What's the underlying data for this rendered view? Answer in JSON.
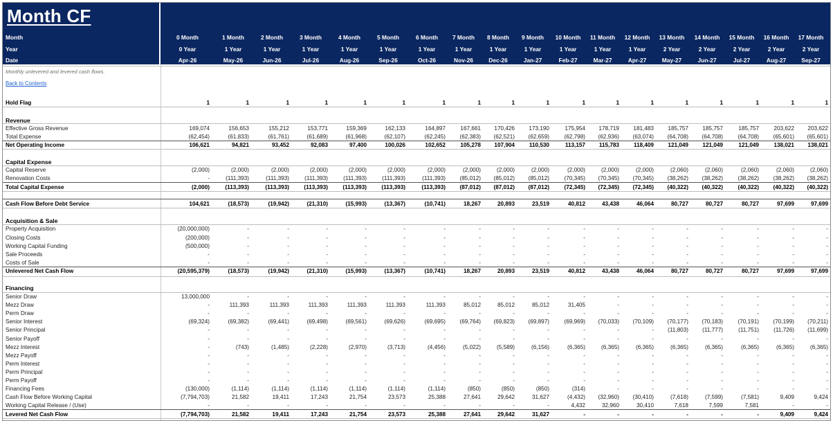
{
  "sheet": {
    "title": "Month CF",
    "note": "Monthly unlevered and levered cash flows.",
    "back_link": "Back to Contents"
  },
  "header": {
    "month_label": "Month",
    "year_label": "Year",
    "date_label": "Date",
    "months": [
      "0 Month",
      "1 Month",
      "2 Month",
      "3 Month",
      "4 Month",
      "5 Month",
      "6 Month",
      "7 Month",
      "8 Month",
      "9 Month",
      "10 Month",
      "11 Month",
      "12 Month",
      "13 Month",
      "14 Month",
      "15 Month",
      "16 Month",
      "17 Month"
    ],
    "years": [
      "0 Year",
      "1 Year",
      "1 Year",
      "1 Year",
      "1 Year",
      "1 Year",
      "1 Year",
      "1 Year",
      "1 Year",
      "1 Year",
      "1 Year",
      "1 Year",
      "1 Year",
      "2 Year",
      "2 Year",
      "2 Year",
      "2 Year",
      "2 Year"
    ],
    "dates": [
      "Apr-26",
      "May-26",
      "Jun-26",
      "Jul-26",
      "Aug-26",
      "Sep-26",
      "Oct-26",
      "Nov-26",
      "Dec-26",
      "Jan-27",
      "Feb-27",
      "Mar-27",
      "Apr-27",
      "May-27",
      "Jun-27",
      "Jul-27",
      "Aug-27",
      "Sep-27"
    ]
  },
  "rows": [
    {
      "label": "Hold Flag",
      "style": "hold",
      "values": [
        "1",
        "1",
        "1",
        "1",
        "1",
        "1",
        "1",
        "1",
        "1",
        "1",
        "1",
        "1",
        "1",
        "1",
        "1",
        "1",
        "1",
        "1"
      ]
    },
    {
      "label": "Revenue",
      "style": "section",
      "values": []
    },
    {
      "label": "Effective Gross Revenue",
      "style": "",
      "values": [
        "169,074",
        "156,653",
        "155,212",
        "153,771",
        "159,369",
        "162,133",
        "164,897",
        "167,661",
        "170,426",
        "173,190",
        "175,954",
        "178,719",
        "181,483",
        "185,757",
        "185,757",
        "185,757",
        "203,622",
        "203,622"
      ]
    },
    {
      "label": "Total Expense",
      "style": "",
      "values": [
        "(62,454)",
        "(61,833)",
        "(61,761)",
        "(61,689)",
        "(61,968)",
        "(62,107)",
        "(62,245)",
        "(62,383)",
        "(62,521)",
        "(62,659)",
        "(62,798)",
        "(62,936)",
        "(63,074)",
        "(64,708)",
        "(64,708)",
        "(64,708)",
        "(65,601)",
        "(65,601)"
      ]
    },
    {
      "label": "Net Operating Income",
      "style": "bold",
      "values": [
        "106,621",
        "94,821",
        "93,452",
        "92,083",
        "97,400",
        "100,026",
        "102,652",
        "105,278",
        "107,904",
        "110,530",
        "113,157",
        "115,783",
        "118,409",
        "121,049",
        "121,049",
        "121,049",
        "138,021",
        "138,021"
      ]
    },
    {
      "label": "Capital Expense",
      "style": "section",
      "values": []
    },
    {
      "label": "Capital Reserve",
      "style": "",
      "values": [
        "(2,000)",
        "(2,000)",
        "(2,000)",
        "(2,000)",
        "(2,000)",
        "(2,000)",
        "(2,000)",
        "(2,000)",
        "(2,000)",
        "(2,000)",
        "(2,000)",
        "(2,000)",
        "(2,000)",
        "(2,060)",
        "(2,060)",
        "(2,060)",
        "(2,060)",
        "(2,060)"
      ]
    },
    {
      "label": "Renovation Costs",
      "style": "",
      "values": [
        "-",
        "(111,393)",
        "(111,393)",
        "(111,393)",
        "(111,393)",
        "(111,393)",
        "(111,393)",
        "(85,012)",
        "(85,012)",
        "(85,012)",
        "(70,345)",
        "(70,345)",
        "(70,345)",
        "(38,262)",
        "(38,262)",
        "(38,262)",
        "(38,262)",
        "(38,262)"
      ]
    },
    {
      "label": "Total Capital Expense",
      "style": "bold",
      "values": [
        "(2,000)",
        "(113,393)",
        "(113,393)",
        "(113,393)",
        "(113,393)",
        "(113,393)",
        "(113,393)",
        "(87,012)",
        "(87,012)",
        "(87,012)",
        "(72,345)",
        "(72,345)",
        "(72,345)",
        "(40,322)",
        "(40,322)",
        "(40,322)",
        "(40,322)",
        "(40,322)"
      ]
    },
    {
      "label": "Cash Flow Before Debt Service",
      "style": "bold",
      "values": [
        "104,621",
        "(18,573)",
        "(19,942)",
        "(21,310)",
        "(15,993)",
        "(13,367)",
        "(10,741)",
        "18,267",
        "20,893",
        "23,519",
        "40,812",
        "43,438",
        "46,064",
        "80,727",
        "80,727",
        "80,727",
        "97,699",
        "97,699"
      ]
    },
    {
      "label": "Acquisition & Sale",
      "style": "section",
      "values": []
    },
    {
      "label": "Property Acquisition",
      "style": "",
      "values": [
        "(20,000,000)",
        "-",
        "-",
        "-",
        "-",
        "-",
        "-",
        "-",
        "-",
        "-",
        "-",
        "-",
        "-",
        "-",
        "-",
        "-",
        "-",
        "-"
      ]
    },
    {
      "label": "Closing Costs",
      "style": "",
      "values": [
        "(200,000)",
        "-",
        "-",
        "-",
        "-",
        "-",
        "-",
        "-",
        "-",
        "-",
        "-",
        "-",
        "-",
        "-",
        "-",
        "-",
        "-",
        "-"
      ]
    },
    {
      "label": "Working Capital Funding",
      "style": "",
      "values": [
        "(500,000)",
        "-",
        "-",
        "-",
        "-",
        "-",
        "-",
        "-",
        "-",
        "-",
        "-",
        "-",
        "-",
        "-",
        "-",
        "-",
        "-",
        "-"
      ]
    },
    {
      "label": "Sale Proceeds",
      "style": "",
      "values": [
        "-",
        "-",
        "-",
        "-",
        "-",
        "-",
        "-",
        "-",
        "-",
        "-",
        "-",
        "-",
        "-",
        "-",
        "-",
        "-",
        "-",
        "-"
      ]
    },
    {
      "label": "Costs of Sale",
      "style": "",
      "values": [
        "-",
        "-",
        "-",
        "-",
        "-",
        "-",
        "-",
        "-",
        "-",
        "-",
        "-",
        "-",
        "-",
        "-",
        "-",
        "-",
        "-",
        "-"
      ]
    },
    {
      "label": "Unlevered Net Cash Flow",
      "style": "bold",
      "values": [
        "(20,595,379)",
        "(18,573)",
        "(19,942)",
        "(21,310)",
        "(15,993)",
        "(13,367)",
        "(10,741)",
        "18,267",
        "20,893",
        "23,519",
        "40,812",
        "43,438",
        "46,064",
        "80,727",
        "80,727",
        "80,727",
        "97,699",
        "97,699"
      ]
    },
    {
      "label": "Financing",
      "style": "section",
      "values": []
    },
    {
      "label": "Senior Draw",
      "style": "",
      "values": [
        "13,000,000",
        "-",
        "-",
        "-",
        "-",
        "-",
        "-",
        "-",
        "-",
        "-",
        "-",
        "-",
        "-",
        "-",
        "-",
        "-",
        "-",
        "-"
      ]
    },
    {
      "label": "Mezz Draw",
      "style": "",
      "values": [
        "-",
        "111,393",
        "111,393",
        "111,393",
        "111,393",
        "111,393",
        "111,393",
        "85,012",
        "85,012",
        "85,012",
        "31,405",
        "-",
        "-",
        "-",
        "-",
        "-",
        "-",
        "-"
      ]
    },
    {
      "label": "Perm Draw",
      "style": "",
      "values": [
        "-",
        "-",
        "-",
        "-",
        "-",
        "-",
        "-",
        "-",
        "-",
        "-",
        "-",
        "-",
        "-",
        "-",
        "-",
        "-",
        "-",
        "-"
      ]
    },
    {
      "label": "Senior Interest",
      "style": "",
      "values": [
        "(69,324)",
        "(69,382)",
        "(69,441)",
        "(69,498)",
        "(69,561)",
        "(69,626)",
        "(69,695)",
        "(69,764)",
        "(69,823)",
        "(69,897)",
        "(69,969)",
        "(70,033)",
        "(70,109)",
        "(70,177)",
        "(70,183)",
        "(70,191)",
        "(70,199)",
        "(70,211)"
      ]
    },
    {
      "label": "Senior Principal",
      "style": "",
      "values": [
        "-",
        "-",
        "-",
        "-",
        "-",
        "-",
        "-",
        "-",
        "-",
        "-",
        "-",
        "-",
        "-",
        "(11,803)",
        "(11,777)",
        "(11,751)",
        "(11,726)",
        "(11,699)"
      ]
    },
    {
      "label": "Senior Payoff",
      "style": "",
      "values": [
        "-",
        "-",
        "-",
        "-",
        "-",
        "-",
        "-",
        "-",
        "-",
        "-",
        "-",
        "-",
        "-",
        "-",
        "-",
        "-",
        "-",
        "-"
      ]
    },
    {
      "label": "Mezz Interest",
      "style": "",
      "values": [
        "-",
        "(743)",
        "(1,485)",
        "(2,228)",
        "(2,970)",
        "(3,713)",
        "(4,456)",
        "(5,022)",
        "(5,589)",
        "(6,156)",
        "(6,365)",
        "(6,365)",
        "(6,365)",
        "(6,365)",
        "(6,365)",
        "(6,365)",
        "(6,365)",
        "(6,365)"
      ]
    },
    {
      "label": "Mezz Payoff",
      "style": "",
      "values": [
        "-",
        "-",
        "-",
        "-",
        "-",
        "-",
        "-",
        "-",
        "-",
        "-",
        "-",
        "-",
        "-",
        "-",
        "-",
        "-",
        "-",
        "-"
      ]
    },
    {
      "label": "Perm Interest",
      "style": "",
      "values": [
        "-",
        "-",
        "-",
        "-",
        "-",
        "-",
        "-",
        "-",
        "-",
        "-",
        "-",
        "-",
        "-",
        "-",
        "-",
        "-",
        "-",
        "-"
      ]
    },
    {
      "label": "Perm Principal",
      "style": "",
      "values": [
        "-",
        "-",
        "-",
        "-",
        "-",
        "-",
        "-",
        "-",
        "-",
        "-",
        "-",
        "-",
        "-",
        "-",
        "-",
        "-",
        "-",
        "-"
      ]
    },
    {
      "label": "Perm Payoff",
      "style": "",
      "values": [
        "-",
        "-",
        "-",
        "-",
        "-",
        "-",
        "-",
        "-",
        "-",
        "-",
        "-",
        "-",
        "-",
        "-",
        "-",
        "-",
        "-",
        "-"
      ]
    },
    {
      "label": "Financing Fees",
      "style": "",
      "values": [
        "(130,000)",
        "(1,114)",
        "(1,114)",
        "(1,114)",
        "(1,114)",
        "(1,114)",
        "(1,114)",
        "(850)",
        "(850)",
        "(850)",
        "(314)",
        "-",
        "-",
        "-",
        "-",
        "-",
        "-",
        "-"
      ]
    },
    {
      "label": "Cash Flow Before Working Capital",
      "style": "",
      "values": [
        "(7,794,703)",
        "21,582",
        "19,411",
        "17,243",
        "21,754",
        "23,573",
        "25,388",
        "27,641",
        "29,642",
        "31,627",
        "(4,432)",
        "(32,960)",
        "(30,410)",
        "(7,618)",
        "(7,599)",
        "(7,581)",
        "9,409",
        "9,424"
      ]
    },
    {
      "label": "Working Capital Release / (Use)",
      "style": "",
      "values": [
        "-",
        "-",
        "-",
        "-",
        "-",
        "-",
        "-",
        "-",
        "-",
        "-",
        "4,432",
        "32,960",
        "30,410",
        "7,618",
        "7,599",
        "7,581",
        "-",
        "-"
      ]
    },
    {
      "label": "Levered Net Cash Flow",
      "style": "bold",
      "values": [
        "(7,794,703)",
        "21,582",
        "19,411",
        "17,243",
        "21,754",
        "23,573",
        "25,388",
        "27,641",
        "29,642",
        "31,627",
        "-",
        "-",
        "-",
        "-",
        "-",
        "-",
        "9,409",
        "9,424"
      ]
    }
  ]
}
